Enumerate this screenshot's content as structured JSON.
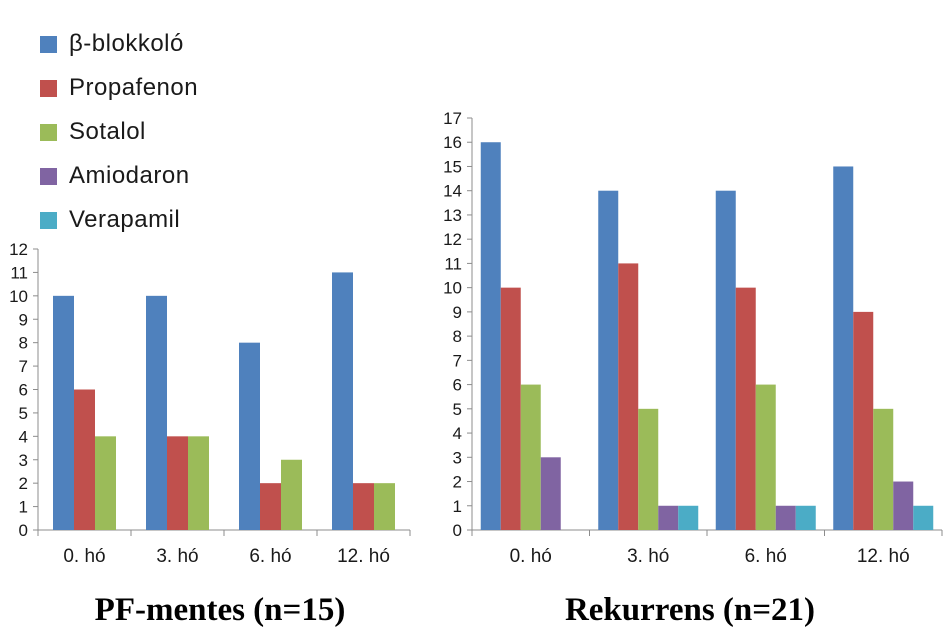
{
  "legend": [
    {
      "name": "β-blokkoló",
      "color": "#4F81BD"
    },
    {
      "name": "Propafenon",
      "color": "#C0504D"
    },
    {
      "name": "Sotalol",
      "color": "#9BBB59"
    },
    {
      "name": "Amiodaron",
      "color": "#8064A2"
    },
    {
      "name": "Verapamil",
      "color": "#4BACC6"
    }
  ],
  "chart_data": [
    {
      "type": "bar",
      "title": "PF-mentes (n=15)",
      "categories": [
        "0. hó",
        "3. hó",
        "6. hó",
        "12. hó"
      ],
      "ylim": [
        0,
        12
      ],
      "grid": false,
      "legend_position": "top-left",
      "series": [
        {
          "name": "β-blokkoló",
          "color": "#4F81BD",
          "values": [
            10,
            10,
            8,
            11
          ]
        },
        {
          "name": "Propafenon",
          "color": "#C0504D",
          "values": [
            6,
            4,
            2,
            2
          ]
        },
        {
          "name": "Sotalol",
          "color": "#9BBB59",
          "values": [
            4,
            4,
            3,
            2
          ]
        }
      ]
    },
    {
      "type": "bar",
      "title": "Rekurrens (n=21)",
      "categories": [
        "0. hó",
        "3. hó",
        "6. hó",
        "12. hó"
      ],
      "ylim": [
        0,
        17
      ],
      "grid": false,
      "series": [
        {
          "name": "β-blokkoló",
          "color": "#4F81BD",
          "values": [
            16,
            14,
            14,
            15
          ]
        },
        {
          "name": "Propafenon",
          "color": "#C0504D",
          "values": [
            10,
            11,
            10,
            9
          ]
        },
        {
          "name": "Sotalol",
          "color": "#9BBB59",
          "values": [
            6,
            5,
            6,
            5
          ]
        },
        {
          "name": "Amiodaron",
          "color": "#8064A2",
          "values": [
            3,
            1,
            1,
            2
          ]
        },
        {
          "name": "Verapamil",
          "color": "#4BACC6",
          "values": [
            0,
            1,
            1,
            1
          ]
        }
      ]
    }
  ]
}
